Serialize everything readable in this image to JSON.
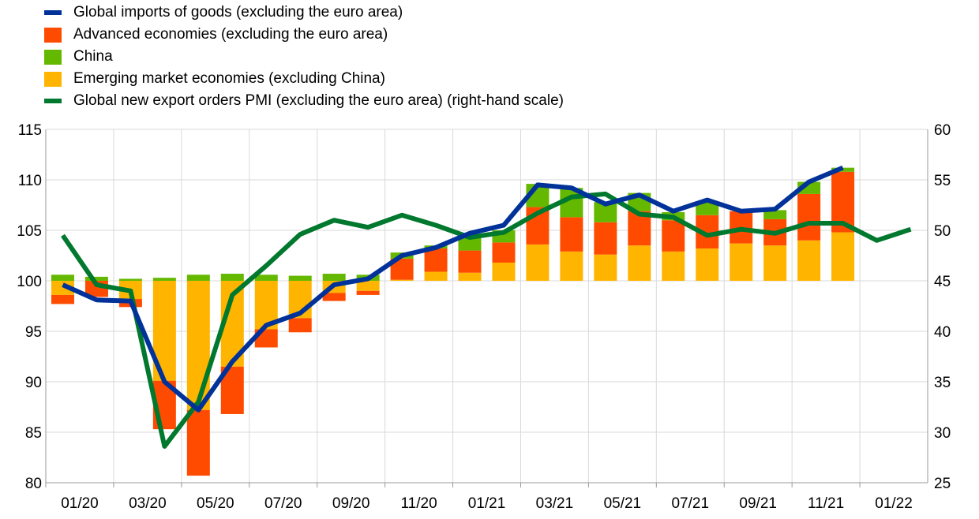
{
  "chart_data": {
    "type": "bar",
    "legend": [
      {
        "label": "Global imports of goods (excluding the euro area)",
        "kind": "line",
        "color": "#003299"
      },
      {
        "label": "Advanced economies (excluding the euro area)",
        "kind": "bar",
        "color": "#FF4B00"
      },
      {
        "label": "China",
        "kind": "bar",
        "color": "#65B800"
      },
      {
        "label": "Emerging market economies (excluding China)",
        "kind": "bar",
        "color": "#FFB400"
      },
      {
        "label": "Global new export orders PMI (excluding the euro area) (right-hand scale)",
        "kind": "line",
        "color": "#00782D"
      }
    ],
    "x_tick_labels": [
      "01/20",
      "03/20",
      "05/20",
      "07/20",
      "09/20",
      "11/20",
      "01/21",
      "03/21",
      "05/21",
      "07/21",
      "09/21",
      "11/21",
      "01/22"
    ],
    "left_axis": {
      "min": 80,
      "max": 115,
      "step": 5,
      "tick_labels": [
        "80",
        "85",
        "90",
        "95",
        "100",
        "105",
        "110",
        "115"
      ]
    },
    "right_axis": {
      "min": 25,
      "max": 60,
      "step": 5,
      "tick_labels": [
        "25",
        "30",
        "35",
        "40",
        "45",
        "50",
        "55",
        "60"
      ]
    },
    "baseline": 100,
    "series": [
      {
        "name": "Emerging market economies (excluding China)",
        "color": "#FFB400",
        "values": [
          -1.4,
          0,
          -1.8,
          -9.9,
          -12.8,
          -8.5,
          -4.8,
          -3.7,
          -1.2,
          -1.0,
          0.1,
          0.9,
          0.8,
          1.8,
          3.6,
          2.9,
          2.6,
          3.5,
          2.9,
          3.2,
          3.7,
          3.5,
          4.0,
          4.8
        ]
      },
      {
        "name": "Advanced economies (excluding the euro area)",
        "color": "#FF4B00",
        "values": [
          -0.9,
          -1.6,
          -0.8,
          -4.8,
          -6.5,
          -4.7,
          -1.8,
          -1.4,
          -0.8,
          -0.4,
          2.1,
          2.3,
          2.2,
          2.0,
          3.7,
          3.4,
          3.2,
          3.4,
          3.1,
          3.3,
          3.2,
          2.6,
          4.6,
          6.0
        ]
      },
      {
        "name": "China",
        "color": "#65B800",
        "values": [
          0.6,
          0.4,
          0.2,
          0.3,
          0.6,
          0.7,
          0.6,
          0.5,
          0.7,
          0.6,
          0.6,
          0.3,
          1.6,
          1.2,
          2.3,
          2.9,
          2.0,
          1.8,
          0.8,
          1.3,
          0.0,
          0.9,
          1.2,
          0.4
        ]
      },
      {
        "name": "Global imports of goods (excluding the euro area)",
        "color": "#003299",
        "axis": "left",
        "values": [
          99.6,
          98.1,
          98.0,
          90.0,
          87.2,
          92.0,
          95.6,
          96.8,
          99.6,
          100.2,
          102.5,
          103.3,
          104.7,
          105.5,
          109.5,
          109.2,
          107.6,
          108.5,
          106.9,
          108.0,
          106.9,
          107.1,
          109.8,
          111.2
        ]
      },
      {
        "name": "Global new export orders PMI (excluding the euro area) (right-hand scale)",
        "color": "#00782D",
        "axis": "right",
        "values": [
          49.5,
          44.6,
          44.0,
          28.6,
          33.0,
          43.6,
          46.5,
          49.6,
          51.0,
          50.3,
          51.5,
          50.5,
          49.3,
          49.8,
          51.7,
          53.3,
          53.6,
          51.6,
          51.3,
          49.5,
          50.1,
          49.7,
          50.7,
          50.7,
          49.0,
          50.1
        ]
      }
    ]
  }
}
